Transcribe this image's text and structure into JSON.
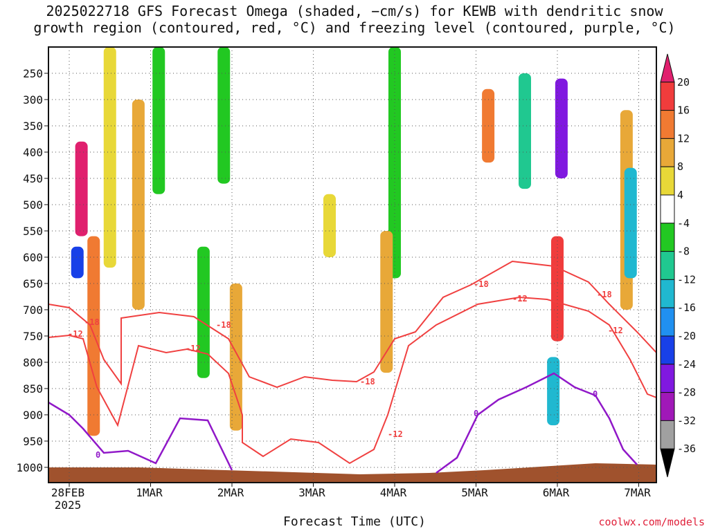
{
  "title_line1": "2025022718 GFS Forecast Omega (shaded, −cm/s) for KEWB with dendritic snow",
  "title_line2": "growth region (contoured, red, °C) and freezing level (contoured, purple, °C)",
  "xlabel": "Forecast Time (UTC)",
  "credit": "coolwx.com/models",
  "chart_data": {
    "type": "heatmap",
    "title": "2025022718 GFS Forecast Omega (shaded, −cm/s) for KEWB with dendritic snow growth region (contoured, red, °C) and freezing level (contoured, purple, °C)",
    "xlabel": "Forecast Time (UTC)",
    "ylabel": "",
    "x_ticks": [
      "28FEB\n2025",
      "1MAR",
      "2MAR",
      "3MAR",
      "4MAR",
      "5MAR",
      "6MAR",
      "7MAR"
    ],
    "y_ticks": [
      250,
      300,
      350,
      400,
      450,
      500,
      550,
      600,
      650,
      700,
      750,
      800,
      850,
      900,
      950,
      1000
    ],
    "y_axis": "pressure (hPa), inverted, 200-1000",
    "grid": true,
    "colorbar": {
      "labels": [
        20,
        16,
        12,
        8,
        4,
        -4,
        -8,
        -12,
        -16,
        -20,
        -24,
        -28,
        -32,
        -36
      ],
      "colors": [
        "#e0206e",
        "#f03c3c",
        "#f07a32",
        "#e8a838",
        "#e8d838",
        "#ffffff",
        "#22c822",
        "#20c890",
        "#20b8d0",
        "#2090f0",
        "#1840e8",
        "#8018e0",
        "#a018b8",
        "#a0a0a0",
        "#000000"
      ]
    },
    "contours": [
      {
        "label": "-18",
        "color": "#f04040",
        "kind": "dendritic growth top"
      },
      {
        "label": "-12",
        "color": "#f04040",
        "kind": "dendritic growth bottom"
      },
      {
        "label": "0",
        "color": "#9018c8",
        "kind": "freezing level"
      }
    ],
    "omega_blobs": [
      {
        "x": 0.3,
        "p1": 560,
        "p2": 940,
        "v": 12
      },
      {
        "x": 0.15,
        "p1": 380,
        "p2": 560,
        "v": 20
      },
      {
        "x": 0.1,
        "p1": 580,
        "p2": 640,
        "v": -24
      },
      {
        "x": 0.5,
        "p1": 200,
        "p2": 620,
        "v": 4
      },
      {
        "x": 0.85,
        "p1": 300,
        "p2": 700,
        "v": 8
      },
      {
        "x": 1.1,
        "p1": 200,
        "p2": 480,
        "v": -8
      },
      {
        "x": 1.65,
        "p1": 580,
        "p2": 830,
        "v": -8
      },
      {
        "x": 1.9,
        "p1": 200,
        "p2": 460,
        "v": -8
      },
      {
        "x": 2.05,
        "p1": 650,
        "p2": 930,
        "v": 8
      },
      {
        "x": 3.2,
        "p1": 480,
        "p2": 600,
        "v": 4
      },
      {
        "x": 4.0,
        "p1": 200,
        "p2": 640,
        "v": -8
      },
      {
        "x": 3.9,
        "p1": 550,
        "p2": 820,
        "v": 8
      },
      {
        "x": 5.15,
        "p1": 280,
        "p2": 420,
        "v": 12
      },
      {
        "x": 5.6,
        "p1": 250,
        "p2": 470,
        "v": -12
      },
      {
        "x": 6.05,
        "p1": 260,
        "p2": 450,
        "v": -28
      },
      {
        "x": 6.0,
        "p1": 560,
        "p2": 760,
        "v": 16
      },
      {
        "x": 5.95,
        "p1": 790,
        "p2": 920,
        "v": -16
      },
      {
        "x": 6.85,
        "p1": 320,
        "p2": 700,
        "v": 8
      },
      {
        "x": 6.9,
        "p1": 430,
        "p2": 640,
        "v": -16
      }
    ]
  }
}
